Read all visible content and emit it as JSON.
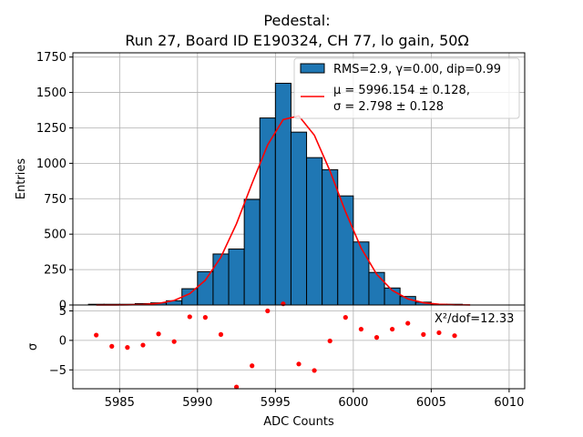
{
  "chart_data": [
    {
      "type": "bar",
      "title_line1": "Pedestal:",
      "title_line2": "Run 27, Board ID E190324, CH 77, lo gain, 50Ω",
      "ylabel": "Entries",
      "xlim": [
        5982,
        6011
      ],
      "ylim": [
        0,
        1780
      ],
      "yticks": [
        0,
        250,
        500,
        750,
        1000,
        1250,
        1500,
        1750
      ],
      "grid": true,
      "legend_position": "top-right",
      "bins": [
        {
          "x0": 5983,
          "x1": 5984,
          "value": 5
        },
        {
          "x0": 5984,
          "x1": 5985,
          "value": 5
        },
        {
          "x0": 5985,
          "x1": 5986,
          "value": 5
        },
        {
          "x0": 5986,
          "x1": 5987,
          "value": 10
        },
        {
          "x0": 5987,
          "x1": 5988,
          "value": 15
        },
        {
          "x0": 5988,
          "x1": 5989,
          "value": 30
        },
        {
          "x0": 5989,
          "x1": 5990,
          "value": 115
        },
        {
          "x0": 5990,
          "x1": 5991,
          "value": 235
        },
        {
          "x0": 5991,
          "x1": 5992,
          "value": 360
        },
        {
          "x0": 5992,
          "x1": 5993,
          "value": 395
        },
        {
          "x0": 5993,
          "x1": 5994,
          "value": 745
        },
        {
          "x0": 5994,
          "x1": 5995,
          "value": 1320
        },
        {
          "x0": 5995,
          "x1": 5996,
          "value": 1565
        },
        {
          "x0": 5996,
          "x1": 5997,
          "value": 1220
        },
        {
          "x0": 5997,
          "x1": 5998,
          "value": 1040
        },
        {
          "x0": 5998,
          "x1": 5999,
          "value": 955
        },
        {
          "x0": 5999,
          "x1": 6000,
          "value": 770
        },
        {
          "x0": 6000,
          "x1": 6001,
          "value": 445
        },
        {
          "x0": 6001,
          "x1": 6002,
          "value": 230
        },
        {
          "x0": 6002,
          "x1": 6003,
          "value": 120
        },
        {
          "x0": 6003,
          "x1": 6004,
          "value": 60
        },
        {
          "x0": 6004,
          "x1": 6005,
          "value": 20
        },
        {
          "x0": 6005,
          "x1": 6006,
          "value": 5
        },
        {
          "x0": 6006,
          "x1": 6007,
          "value": 5
        }
      ],
      "fit": {
        "mu": 5996.154,
        "sigma": 2.798,
        "amplitude": 1345
      },
      "bar_color": "#1f77b4",
      "fit_color": "#ff0000",
      "legend": {
        "hist_label": "RMS=2.9, γ=0.00, dip=0.99",
        "fit_label_line1": "μ = 5996.154 ± 0.128,",
        "fit_label_line2": "σ = 2.798 ± 0.128"
      }
    },
    {
      "type": "scatter",
      "xlabel": "ADC Counts",
      "ylabel": "σ",
      "xlim": [
        5982,
        6011
      ],
      "ylim": [
        -8.2,
        6
      ],
      "xticks": [
        5985,
        5990,
        5995,
        6000,
        6005,
        6010
      ],
      "yticks": [
        -5,
        0,
        5
      ],
      "grid": true,
      "annotation": "Χ²/dof=12.33",
      "point_color": "#ff0000",
      "points": [
        {
          "x": 5983.5,
          "y": 0.9
        },
        {
          "x": 5984.5,
          "y": -1.0
        },
        {
          "x": 5985.5,
          "y": -1.2
        },
        {
          "x": 5986.5,
          "y": -0.8
        },
        {
          "x": 5987.5,
          "y": 1.1
        },
        {
          "x": 5988.5,
          "y": -0.2
        },
        {
          "x": 5989.5,
          "y": 4.0
        },
        {
          "x": 5990.5,
          "y": 3.9
        },
        {
          "x": 5991.5,
          "y": 1.0
        },
        {
          "x": 5992.5,
          "y": -7.9
        },
        {
          "x": 5993.5,
          "y": -4.3
        },
        {
          "x": 5994.5,
          "y": 5.0
        },
        {
          "x": 5995.5,
          "y": 6.2
        },
        {
          "x": 5996.5,
          "y": -4.0
        },
        {
          "x": 5997.5,
          "y": -5.1
        },
        {
          "x": 5998.5,
          "y": -0.1
        },
        {
          "x": 5999.5,
          "y": 3.9
        },
        {
          "x": 6000.5,
          "y": 1.9
        },
        {
          "x": 6001.5,
          "y": 0.5
        },
        {
          "x": 6002.5,
          "y": 1.9
        },
        {
          "x": 6003.5,
          "y": 2.9
        },
        {
          "x": 6004.5,
          "y": 1.0
        },
        {
          "x": 6005.5,
          "y": 1.3
        },
        {
          "x": 6006.5,
          "y": 0.8
        }
      ]
    }
  ]
}
